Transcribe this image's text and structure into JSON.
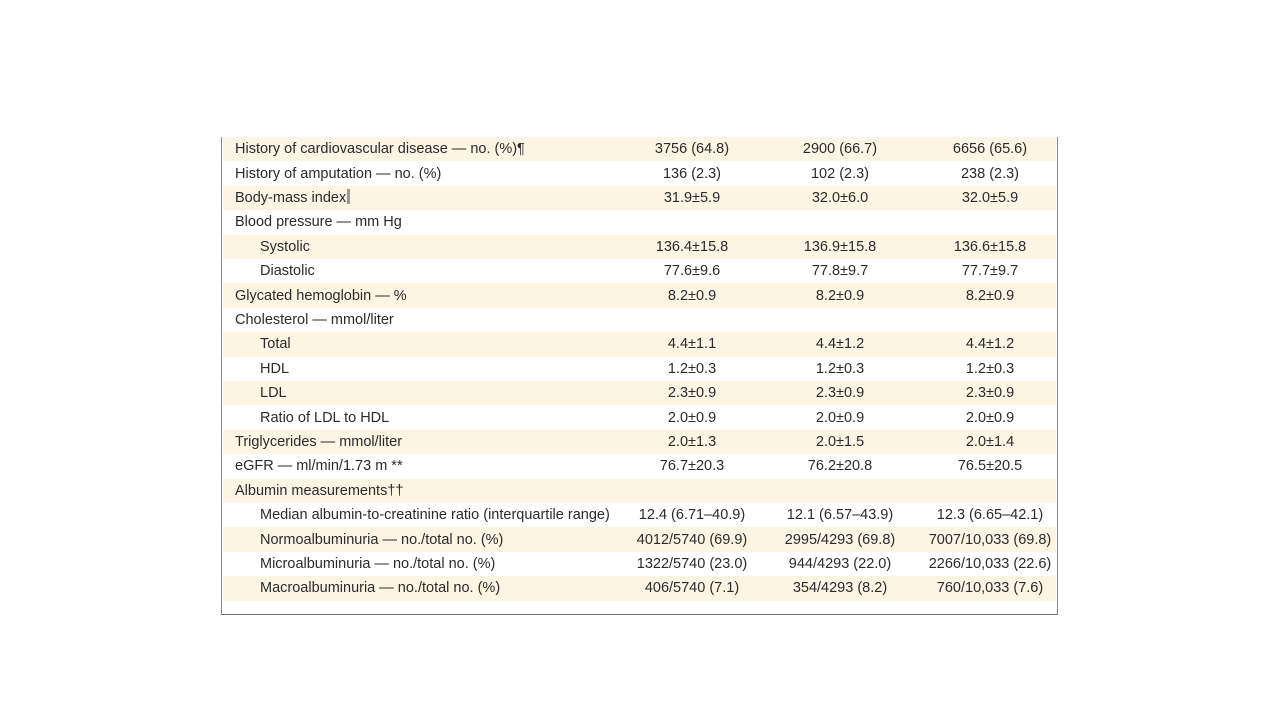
{
  "table": {
    "rows": [
      {
        "label": "History of cardiovascular disease — no. (%)¶",
        "indent": false,
        "values": [
          "3756 (64.8)",
          "2900 (66.7)",
          "6656 (65.6)"
        ]
      },
      {
        "label": "History of amputation — no. (%)",
        "indent": false,
        "values": [
          "136 (2.3)",
          "102 (2.3)",
          "238 (2.3)"
        ]
      },
      {
        "label": "Body-mass index",
        "indent": false,
        "marker": "double-bar",
        "values": [
          "31.9±5.9",
          "32.0±6.0",
          "32.0±5.9"
        ]
      },
      {
        "label": "Blood pressure — mm Hg",
        "indent": false,
        "values": [
          "",
          "",
          ""
        ]
      },
      {
        "label": "Systolic",
        "indent": true,
        "values": [
          "136.4±15.8",
          "136.9±15.8",
          "136.6±15.8"
        ]
      },
      {
        "label": "Diastolic",
        "indent": true,
        "values": [
          "77.6±9.6",
          "77.8±9.7",
          "77.7±9.7"
        ]
      },
      {
        "label": "Glycated hemoglobin — %",
        "indent": false,
        "values": [
          "8.2±0.9",
          "8.2±0.9",
          "8.2±0.9"
        ]
      },
      {
        "label": "Cholesterol — mmol/liter",
        "indent": false,
        "values": [
          "",
          "",
          ""
        ]
      },
      {
        "label": "Total",
        "indent": true,
        "values": [
          "4.4±1.1",
          "4.4±1.2",
          "4.4±1.2"
        ]
      },
      {
        "label": "HDL",
        "indent": true,
        "values": [
          "1.2±0.3",
          "1.2±0.3",
          "1.2±0.3"
        ]
      },
      {
        "label": "LDL",
        "indent": true,
        "values": [
          "2.3±0.9",
          "2.3±0.9",
          "2.3±0.9"
        ]
      },
      {
        "label": "Ratio of LDL to HDL",
        "indent": true,
        "values": [
          "2.0±0.9",
          "2.0±0.9",
          "2.0±0.9"
        ]
      },
      {
        "label": "Triglycerides — mmol/liter",
        "indent": false,
        "values": [
          "2.0±1.3",
          "2.0±1.5",
          "2.0±1.4"
        ]
      },
      {
        "label": "eGFR — ml/min/1.73 m **",
        "indent": false,
        "values": [
          "76.7±20.3",
          "76.2±20.8",
          "76.5±20.5"
        ]
      },
      {
        "label": "Albumin measurements††",
        "indent": false,
        "values": [
          "",
          "",
          ""
        ]
      },
      {
        "label": "Median albumin-to-creatinine ratio (interquartile range)",
        "indent": true,
        "values": [
          "12.4 (6.71–40.9)",
          "12.1 (6.57–43.9)",
          "12.3 (6.65–42.1)"
        ]
      },
      {
        "label": "Normoalbuminuria — no./total no. (%)",
        "indent": true,
        "values": [
          "4012/5740 (69.9)",
          "2995/4293 (69.8)",
          "7007/10,033 (69.8)"
        ]
      },
      {
        "label": "Microalbuminuria — no./total no. (%)",
        "indent": true,
        "values": [
          "1322/5740 (23.0)",
          "944/4293 (22.0)",
          "2266/10,033 (22.6)"
        ]
      },
      {
        "label": "Macroalbuminuria — no./total no. (%)",
        "indent": true,
        "values": [
          "406/5740 (7.1)",
          "354/4293 (8.2)",
          "760/10,033 (7.6)"
        ]
      }
    ]
  },
  "colors": {
    "shaded_row": "#fdf5e4",
    "text": "#2b2b2b",
    "border": "#8a8a8a"
  }
}
